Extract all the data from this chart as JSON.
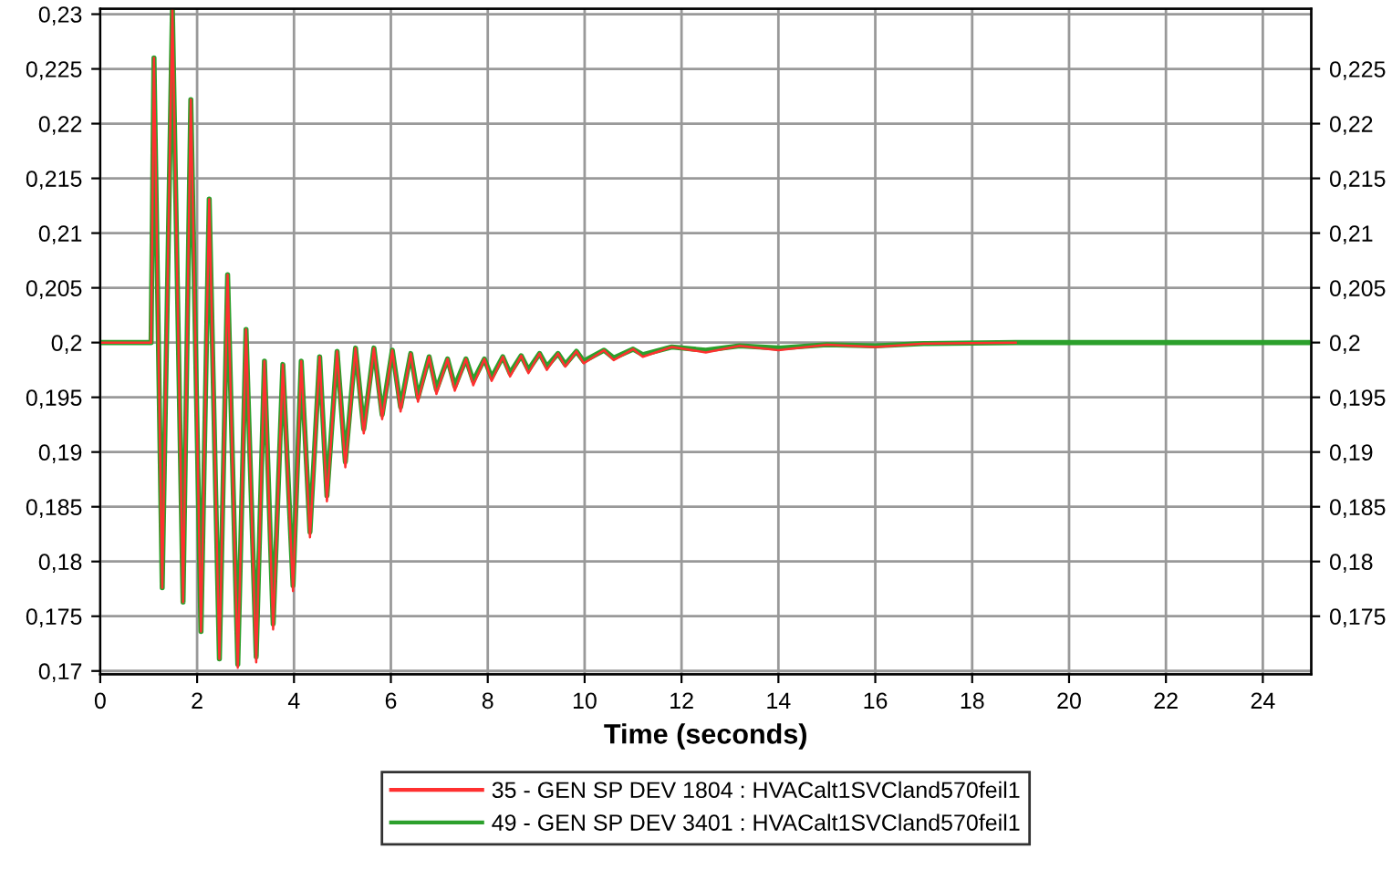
{
  "chart_data": {
    "type": "line",
    "xlabel": "Time (seconds)",
    "xlim": [
      0,
      25
    ],
    "xticks": [
      0,
      2,
      4,
      6,
      8,
      10,
      12,
      14,
      16,
      18,
      20,
      22,
      24
    ],
    "ylim": [
      0.1697,
      0.2305
    ],
    "yticks": [
      {
        "value": 0.17,
        "label": "0,17"
      },
      {
        "value": 0.175,
        "label": "0,175"
      },
      {
        "value": 0.18,
        "label": "0,18"
      },
      {
        "value": 0.185,
        "label": "0,185"
      },
      {
        "value": 0.19,
        "label": "0,19"
      },
      {
        "value": 0.195,
        "label": "0,195"
      },
      {
        "value": 0.2,
        "label": "0,2"
      },
      {
        "value": 0.205,
        "label": "0,205"
      },
      {
        "value": 0.21,
        "label": "0,21"
      },
      {
        "value": 0.215,
        "label": "0,215"
      },
      {
        "value": 0.22,
        "label": "0,22"
      },
      {
        "value": 0.225,
        "label": "0,225"
      },
      {
        "value": 0.23,
        "label": "0,23"
      }
    ],
    "y2lim": [
      0.1697,
      0.2305
    ],
    "y2ticks": [
      {
        "value": 0.175,
        "label": "0,175"
      },
      {
        "value": 0.18,
        "label": "0,18"
      },
      {
        "value": 0.185,
        "label": "0,185"
      },
      {
        "value": 0.19,
        "label": "0,19"
      },
      {
        "value": 0.195,
        "label": "0,195"
      },
      {
        "value": 0.2,
        "label": "0,2"
      },
      {
        "value": 0.205,
        "label": "0,205"
      },
      {
        "value": 0.21,
        "label": "0,21"
      },
      {
        "value": 0.215,
        "label": "0,215"
      },
      {
        "value": 0.22,
        "label": "0,22"
      },
      {
        "value": 0.225,
        "label": "0,225"
      }
    ],
    "grid": true,
    "legend": "bottom",
    "series": [
      {
        "name": "35 - GEN SP DEV 1804 : HVACalt1SVCland570feil1",
        "color": "#ff3030",
        "x": [
          0,
          1.05,
          1.11,
          1.28,
          1.49,
          1.71,
          1.87,
          2.08,
          2.25,
          2.46,
          2.63,
          2.84,
          3.01,
          3.22,
          3.39,
          3.57,
          3.77,
          3.98,
          4.15,
          4.33,
          4.53,
          4.68,
          4.89,
          5.06,
          5.27,
          5.44,
          5.65,
          5.82,
          6.03,
          6.2,
          6.41,
          6.56,
          6.79,
          6.94,
          7.17,
          7.32,
          7.55,
          7.7,
          7.93,
          8.08,
          8.31,
          8.46,
          8.69,
          8.84,
          9.07,
          9.22,
          9.45,
          9.6,
          9.83,
          9.98,
          10.4,
          10.6,
          11,
          11.2,
          11.8,
          12.5,
          13.2,
          14,
          15,
          16,
          17,
          18.9
        ],
        "values": [
          0.2,
          0.2,
          0.226,
          0.1776,
          0.2305,
          0.1763,
          0.2222,
          0.1736,
          0.2131,
          0.1711,
          0.2062,
          0.1703,
          0.2012,
          0.1708,
          0.1983,
          0.1738,
          0.198,
          0.1773,
          0.1983,
          0.1822,
          0.1987,
          0.1855,
          0.1992,
          0.1886,
          0.1995,
          0.1917,
          0.1995,
          0.193,
          0.1993,
          0.1937,
          0.199,
          0.1946,
          0.1987,
          0.1953,
          0.1985,
          0.1956,
          0.1985,
          0.1961,
          0.1985,
          0.1965,
          0.1987,
          0.1969,
          0.1988,
          0.1972,
          0.199,
          0.1975,
          0.199,
          0.1978,
          0.1992,
          0.1981,
          0.1993,
          0.1984,
          0.1994,
          0.1987,
          0.1996,
          0.1991,
          0.1997,
          0.1993,
          0.1998,
          0.1996,
          0.1999,
          0.2
        ]
      },
      {
        "name": "49 - GEN SP DEV 3401 : HVACalt1SVCland570feil1",
        "color": "#2ca02c",
        "x": [
          0,
          1.05,
          1.11,
          1.28,
          1.49,
          1.71,
          1.87,
          2.08,
          2.25,
          2.46,
          2.63,
          2.84,
          3.01,
          3.22,
          3.39,
          3.57,
          3.77,
          3.98,
          4.15,
          4.33,
          4.53,
          4.68,
          4.89,
          5.06,
          5.27,
          5.44,
          5.65,
          5.82,
          6.03,
          6.2,
          6.41,
          6.56,
          6.79,
          6.94,
          7.17,
          7.32,
          7.55,
          7.7,
          7.93,
          8.08,
          8.31,
          8.46,
          8.69,
          8.84,
          9.07,
          9.22,
          9.45,
          9.6,
          9.83,
          9.98,
          10.4,
          10.6,
          11,
          11.2,
          11.8,
          12.5,
          13.2,
          14,
          15,
          16,
          17,
          18.9,
          25
        ],
        "values": [
          0.2,
          0.2,
          0.226,
          0.1776,
          0.2305,
          0.1763,
          0.2222,
          0.1736,
          0.2131,
          0.1711,
          0.2062,
          0.1706,
          0.2012,
          0.1713,
          0.1983,
          0.1743,
          0.198,
          0.1778,
          0.1983,
          0.1827,
          0.1987,
          0.186,
          0.1992,
          0.1891,
          0.1995,
          0.1921,
          0.1995,
          0.1934,
          0.1993,
          0.1941,
          0.199,
          0.195,
          0.1987,
          0.1957,
          0.1985,
          0.196,
          0.1985,
          0.1965,
          0.1985,
          0.1968,
          0.1987,
          0.1972,
          0.1988,
          0.1975,
          0.199,
          0.1978,
          0.199,
          0.198,
          0.1992,
          0.1983,
          0.1993,
          0.1986,
          0.1994,
          0.1989,
          0.1996,
          0.1993,
          0.1997,
          0.1995,
          0.1998,
          0.1997,
          0.1999,
          0.2,
          0.2
        ]
      }
    ]
  }
}
